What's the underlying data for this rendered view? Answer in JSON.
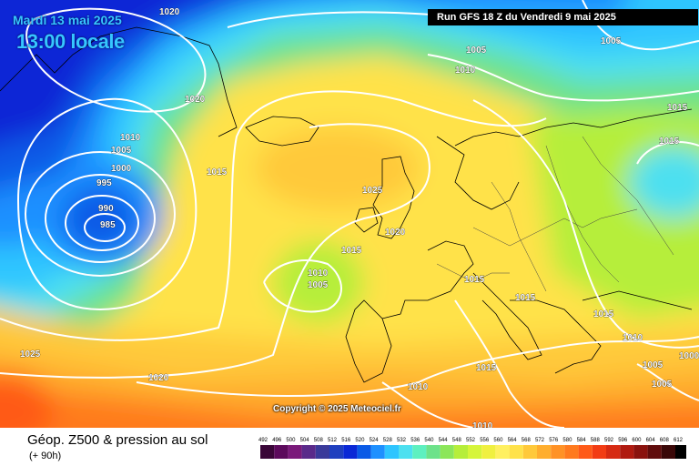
{
  "header": {
    "date": "Mardi 13 mai 2025",
    "local_time": "13:00 locale",
    "run": "Run GFS 18 Z du Vendredi 9 mai 2025"
  },
  "copyright": "Copyright © 2025 Meteociel.fr",
  "footer": {
    "title": "Géop. Z500 & pression au sol",
    "subtitle": "(+ 90h)"
  },
  "isobars": [
    "1020",
    "1005",
    "1005",
    "1010",
    "1020",
    "1010",
    "1005",
    "1000",
    "995",
    "990",
    "985",
    "1015",
    "1025",
    "1020",
    "1015",
    "1010",
    "1005",
    "1015",
    "1015",
    "1015",
    "1015",
    "1015",
    "1010",
    "1005",
    "1000",
    "1005",
    "1025",
    "1020",
    "1010",
    "1015",
    "1010"
  ],
  "scale": {
    "values": [
      "492",
      "496",
      "500",
      "504",
      "508",
      "512",
      "516",
      "520",
      "524",
      "528",
      "532",
      "536",
      "540",
      "544",
      "548",
      "552",
      "556",
      "560",
      "564",
      "568",
      "572",
      "576",
      "580",
      "584",
      "588",
      "592",
      "596",
      "600",
      "604",
      "608",
      "612"
    ],
    "colors": [
      "#3a0638",
      "#5c0a5c",
      "#7a1a7a",
      "#5a2a8a",
      "#3a3a9a",
      "#1f3fbf",
      "#0a28d6",
      "#0a5ae6",
      "#1e90ff",
      "#2ec5ff",
      "#4de0f0",
      "#5ef0c0",
      "#6de28a",
      "#8ce65a",
      "#b6ee3a",
      "#d6f53a",
      "#f0f040",
      "#fff060",
      "#ffe24a",
      "#ffc93a",
      "#ffae2e",
      "#ff9226",
      "#ff7a1e",
      "#ff5a18",
      "#f23c14",
      "#d62a12",
      "#b01a10",
      "#8a120e",
      "#600c0c",
      "#3a0808",
      "#000000"
    ]
  }
}
